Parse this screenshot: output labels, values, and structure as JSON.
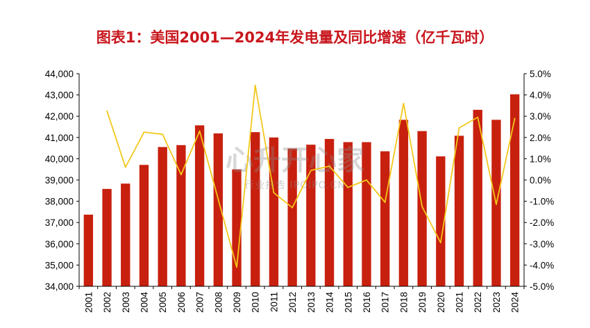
{
  "chart_data": {
    "type": "bar",
    "title": "图表1：美国2001—2024年发电量及同比增速（亿千瓦时）",
    "categories": [
      "2001",
      "2002",
      "2003",
      "2004",
      "2005",
      "2006",
      "2007",
      "2008",
      "2009",
      "2010",
      "2011",
      "2012",
      "2013",
      "2014",
      "2015",
      "2016",
      "2017",
      "2018",
      "2019",
      "2020",
      "2021",
      "2022",
      "2023",
      "2024"
    ],
    "series": [
      {
        "type": "bar",
        "axis": "left",
        "values": [
          37370,
          38580,
          38830,
          39710,
          40550,
          40640,
          41570,
          41190,
          39500,
          41250,
          41000,
          40480,
          40660,
          40930,
          40780,
          40780,
          40350,
          41830,
          41300,
          40110,
          41080,
          42300,
          41830,
          43030
        ]
      },
      {
        "type": "line",
        "axis": "right",
        "values": [
          null,
          3.25,
          0.6,
          2.25,
          2.15,
          0.25,
          2.3,
          -0.9,
          -4.1,
          4.45,
          -0.6,
          -1.3,
          0.45,
          0.65,
          -0.35,
          0.0,
          -1.05,
          3.6,
          -1.25,
          -2.95,
          2.45,
          2.95,
          -1.15,
          2.9
        ]
      }
    ],
    "ylim_left": [
      34000,
      44000
    ],
    "ylim_right": [
      -5.0,
      5.0
    ],
    "left_ticks": [
      "34,000",
      "35,000",
      "36,000",
      "37,000",
      "38,000",
      "39,000",
      "40,000",
      "41,000",
      "42,000",
      "43,000",
      "44,000"
    ],
    "right_ticks": [
      "-5.0%",
      "-4.0%",
      "-3.0%",
      "-2.0%",
      "-1.0%",
      "0.0%",
      "1.0%",
      "2.0%",
      "3.0%",
      "4.0%",
      "5.0%"
    ],
    "grid": false,
    "colors": {
      "bar": "#c8200e",
      "line": "#f3c71a",
      "title": "#c8161d"
    }
  },
  "watermark": {
    "main": "心升开心家",
    "sub": "行业报告 IPOIPO.CN"
  }
}
